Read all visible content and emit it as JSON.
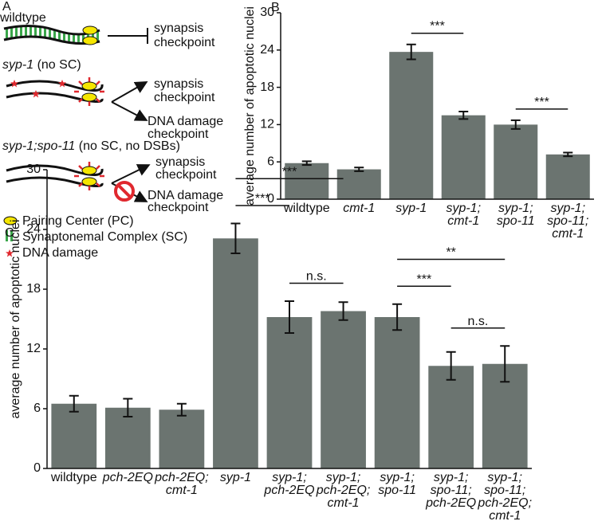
{
  "panel_a": {
    "label": "A",
    "wildtype": {
      "title": "wildtype",
      "checkpoint": [
        "synapsis",
        "checkpoint"
      ]
    },
    "syp1": {
      "gene": "syp-1",
      "note": "(no SC)",
      "checkpoint_1": [
        "synapsis",
        "checkpoint"
      ],
      "checkpoint_2": [
        "DNA damage",
        "checkpoint"
      ]
    },
    "syp1_spo11": {
      "gene": "syp-1;spo-11",
      "note": "(no SC, no DSBs)",
      "checkpoint_1": [
        "synapsis",
        "checkpoint"
      ],
      "checkpoint_2": [
        "DNA damage",
        "checkpoint"
      ]
    },
    "legend": [
      "Pairing Center (PC)",
      "Synaptonemal Complex (SC)",
      "DNA damage"
    ]
  },
  "chart_data": [
    {
      "type": "bar",
      "label": "B",
      "ylabel": "average number of apoptotic nuclei",
      "categories": [
        "wildtype",
        "cmt-1",
        "syp-1",
        "syp-1;\ncmt-1",
        "syp-1;\nspo-11",
        "syp-1;\nspo-11;\ncmt-1"
      ],
      "category_italic": [
        false,
        true,
        true,
        true,
        true,
        true
      ],
      "values": [
        5.8,
        4.8,
        23.7,
        13.5,
        12.0,
        7.2
      ],
      "errors": [
        0.3,
        0.3,
        1.2,
        0.6,
        0.7,
        0.3
      ],
      "color": "#6b7470",
      "ylim": [
        0,
        30
      ],
      "yticks": [
        0,
        6,
        12,
        18,
        24,
        30
      ],
      "significance": [
        {
          "from": 2,
          "to": 3,
          "label": "***"
        },
        {
          "from": 4,
          "to": 5,
          "label": "***"
        }
      ]
    },
    {
      "type": "bar",
      "label": "C",
      "ylabel": "average number of apoptotic nuclei",
      "categories": [
        "wildtype",
        "pch-2EQ",
        "pch-2EQ;\ncmt-1",
        "syp-1",
        "syp-1;\npch-2EQ",
        "syp-1;\npch-2EQ;\ncmt-1",
        "syp-1;\nspo-11",
        "syp-1;\nspo-11;\npch-2EQ",
        "syp-1;\nspo-11;\npch-2EQ;\ncmt-1"
      ],
      "category_italic": [
        false,
        true,
        true,
        true,
        true,
        true,
        true,
        true,
        true
      ],
      "values": [
        6.5,
        6.1,
        5.9,
        23.1,
        15.2,
        15.8,
        15.2,
        10.3,
        10.5
      ],
      "errors": [
        0.8,
        0.9,
        0.6,
        1.5,
        1.6,
        0.9,
        1.3,
        1.4,
        1.8
      ],
      "color": "#6b7470",
      "ylim": [
        0,
        30
      ],
      "yticks": [
        0,
        6,
        12,
        18,
        24,
        30
      ],
      "significance": [
        {
          "from": 4,
          "to": 5,
          "label": "n.s."
        },
        {
          "from": 3,
          "to": 4,
          "label": "***"
        },
        {
          "from": 3,
          "to": 5,
          "label": "***"
        },
        {
          "from": 7,
          "to": 8,
          "label": "n.s."
        },
        {
          "from": 6,
          "to": 7,
          "label": "***"
        },
        {
          "from": 6,
          "to": 8,
          "label": "**"
        }
      ]
    }
  ]
}
